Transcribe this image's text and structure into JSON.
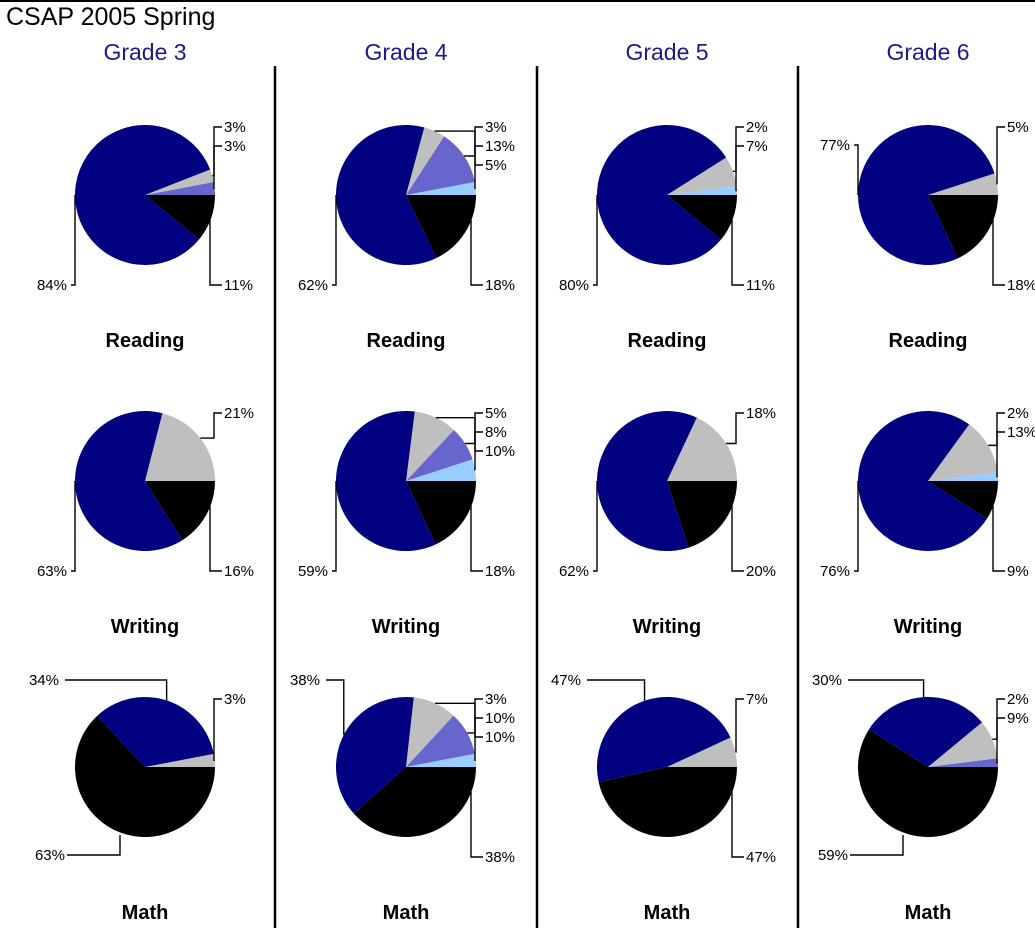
{
  "page": {
    "title": "CSAP 2005 Spring"
  },
  "colors": {
    "category_1": "#000080",
    "category_2": "#bfbfbf",
    "category_3": "#6666cc",
    "category_4": "#99ccff",
    "category_5": "#000000",
    "grade_title": "#1a1a8c"
  },
  "chart_data": [
    {
      "type": "pie",
      "grade": "Grade 3",
      "subject": "Reading",
      "slices": [
        {
          "category": 1,
          "value": 84,
          "label": "84%"
        },
        {
          "category": 2,
          "value": 3,
          "label": "3%"
        },
        {
          "category": 3,
          "value": 3,
          "label": "3%"
        },
        {
          "category": 5,
          "value": 11,
          "label": "11%"
        }
      ]
    },
    {
      "type": "pie",
      "grade": "Grade 4",
      "subject": "Reading",
      "slices": [
        {
          "category": 1,
          "value": 62,
          "label": "62%"
        },
        {
          "category": 2,
          "value": 5,
          "label": "5%"
        },
        {
          "category": 3,
          "value": 13,
          "label": "13%"
        },
        {
          "category": 4,
          "value": 3,
          "label": "3%"
        },
        {
          "category": 5,
          "value": 18,
          "label": "18%"
        }
      ]
    },
    {
      "type": "pie",
      "grade": "Grade 5",
      "subject": "Reading",
      "slices": [
        {
          "category": 1,
          "value": 80,
          "label": "80%"
        },
        {
          "category": 2,
          "value": 7,
          "label": "7%"
        },
        {
          "category": 4,
          "value": 2,
          "label": "2%"
        },
        {
          "category": 5,
          "value": 11,
          "label": "11%"
        }
      ]
    },
    {
      "type": "pie",
      "grade": "Grade 6",
      "subject": "Reading",
      "slices": [
        {
          "category": 1,
          "value": 77,
          "label": "77%"
        },
        {
          "category": 2,
          "value": 5,
          "label": "5%"
        },
        {
          "category": 5,
          "value": 18,
          "label": "18%"
        }
      ]
    },
    {
      "type": "pie",
      "grade": "Grade 3",
      "subject": "Writing",
      "slices": [
        {
          "category": 1,
          "value": 63,
          "label": "63%"
        },
        {
          "category": 2,
          "value": 21,
          "label": "21%"
        },
        {
          "category": 5,
          "value": 16,
          "label": "16%"
        }
      ]
    },
    {
      "type": "pie",
      "grade": "Grade 4",
      "subject": "Writing",
      "slices": [
        {
          "category": 1,
          "value": 59,
          "label": "59%"
        },
        {
          "category": 2,
          "value": 10,
          "label": "10%"
        },
        {
          "category": 3,
          "value": 8,
          "label": "8%"
        },
        {
          "category": 4,
          "value": 5,
          "label": "5%"
        },
        {
          "category": 5,
          "value": 18,
          "label": "18%"
        }
      ]
    },
    {
      "type": "pie",
      "grade": "Grade 5",
      "subject": "Writing",
      "slices": [
        {
          "category": 1,
          "value": 62,
          "label": "62%"
        },
        {
          "category": 2,
          "value": 18,
          "label": "18%"
        },
        {
          "category": 5,
          "value": 20,
          "label": "20%"
        }
      ]
    },
    {
      "type": "pie",
      "grade": "Grade 6",
      "subject": "Writing",
      "slices": [
        {
          "category": 1,
          "value": 76,
          "label": "76%"
        },
        {
          "category": 2,
          "value": 13,
          "label": "13%"
        },
        {
          "category": 4,
          "value": 2,
          "label": "2%"
        },
        {
          "category": 5,
          "value": 9,
          "label": "9%"
        }
      ]
    },
    {
      "type": "pie",
      "grade": "Grade 3",
      "subject": "Math",
      "slices": [
        {
          "category": 1,
          "value": 34,
          "label": "34%"
        },
        {
          "category": 2,
          "value": 3,
          "label": "3%"
        },
        {
          "category": 5,
          "value": 63,
          "label": "63%"
        }
      ]
    },
    {
      "type": "pie",
      "grade": "Grade 4",
      "subject": "Math",
      "slices": [
        {
          "category": 1,
          "value": 38,
          "label": "38%"
        },
        {
          "category": 2,
          "value": 10,
          "label": "10%"
        },
        {
          "category": 3,
          "value": 10,
          "label": "10%"
        },
        {
          "category": 4,
          "value": 3,
          "label": "3%"
        },
        {
          "category": 5,
          "value": 38,
          "label": "38%"
        }
      ]
    },
    {
      "type": "pie",
      "grade": "Grade 5",
      "subject": "Math",
      "slices": [
        {
          "category": 1,
          "value": 47,
          "label": "47%"
        },
        {
          "category": 2,
          "value": 7,
          "label": "7%"
        },
        {
          "category": 5,
          "value": 47,
          "label": "47%"
        }
      ]
    },
    {
      "type": "pie",
      "grade": "Grade 6",
      "subject": "Math",
      "slices": [
        {
          "category": 1,
          "value": 30,
          "label": "30%"
        },
        {
          "category": 2,
          "value": 9,
          "label": "9%"
        },
        {
          "category": 3,
          "value": 2,
          "label": "2%"
        },
        {
          "category": 5,
          "value": 59,
          "label": "59%"
        }
      ]
    }
  ]
}
